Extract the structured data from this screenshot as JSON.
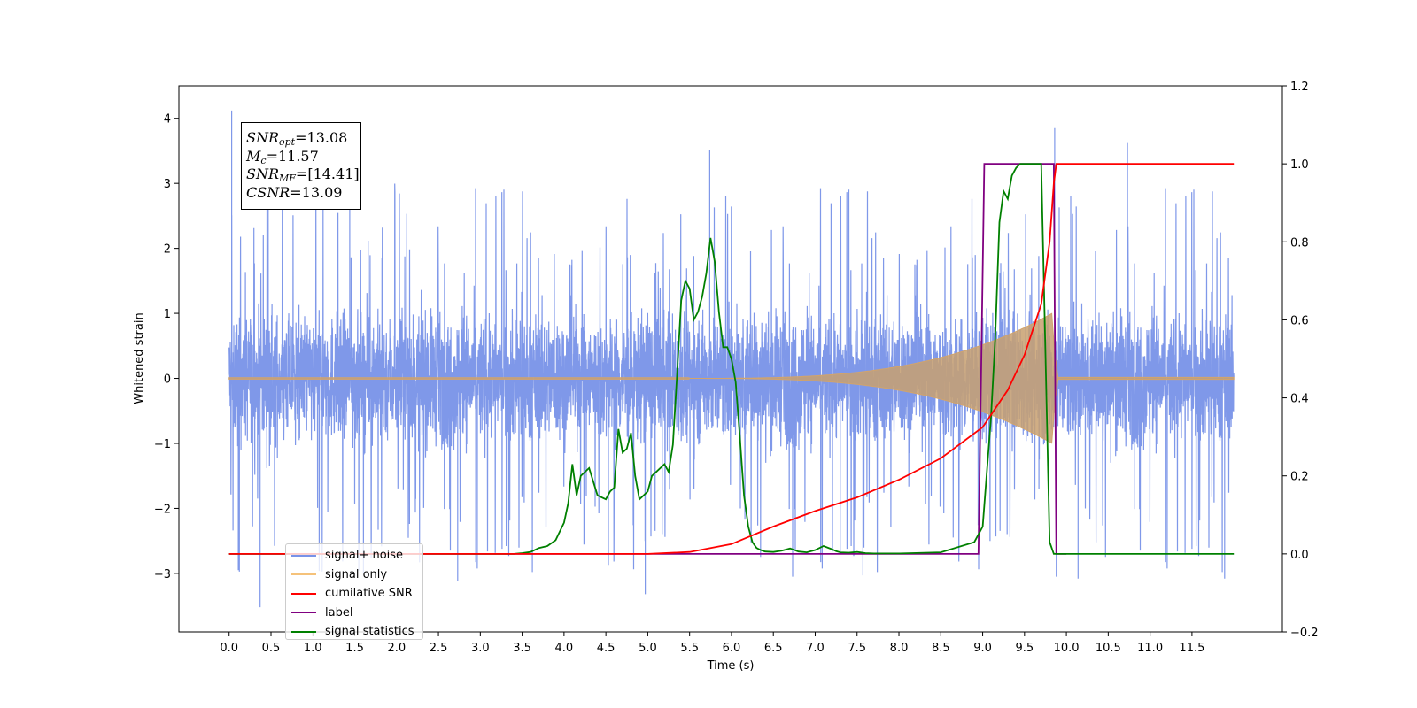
{
  "chart_data": {
    "type": "line",
    "title": "",
    "xlabel": "Time (s)",
    "ylabel": "Whitened strain",
    "xlim": [
      -0.6,
      12.58
    ],
    "ylim": [
      -3.9,
      4.5
    ],
    "y2lim": [
      -0.2,
      1.2
    ],
    "x_ticks": [
      "0.0",
      "0.5",
      "1.0",
      "1.5",
      "2.0",
      "2.5",
      "3.0",
      "3.5",
      "4.0",
      "4.5",
      "5.0",
      "5.5",
      "6.0",
      "6.5",
      "7.0",
      "7.5",
      "8.0",
      "8.5",
      "9.0",
      "9.5",
      "10.0",
      "10.5",
      "11.0",
      "11.5"
    ],
    "y_ticks": [
      "−3",
      "−2",
      "−1",
      "0",
      "1",
      "2",
      "3",
      "4"
    ],
    "y2_ticks": [
      "−0.2",
      "0.0",
      "0.2",
      "0.4",
      "0.6",
      "0.8",
      "1.0",
      "1.2"
    ],
    "grid": false,
    "legend_position": "lower-left",
    "annotation": {
      "lines": [
        {
          "base": "SNR",
          "sub": "opt",
          "value": "=13.08"
        },
        {
          "base": "M",
          "sub": "c",
          "value": "=11.57"
        },
        {
          "base": "SNR",
          "sub": "MF",
          "value": "=[14.41]"
        },
        {
          "base": "CSNR",
          "sub": "",
          "value": "=13.09"
        }
      ]
    },
    "series": [
      {
        "name": "signal+ noise",
        "axis": "left",
        "color": "#7892e8",
        "x_range": [
          0.0,
          12.0
        ],
        "typical_range": [
          -1.4,
          1.4
        ],
        "extremes": [
          {
            "x": 0.03,
            "y": 4.12
          },
          {
            "x": 0.37,
            "y": -3.52
          },
          {
            "x": 0.11,
            "y": -2.95
          },
          {
            "x": 1.44,
            "y": 3.32
          },
          {
            "x": 2.73,
            "y": -3.12
          },
          {
            "x": 4.53,
            "y": -2.87
          },
          {
            "x": 4.97,
            "y": -3.32
          },
          {
            "x": 5.74,
            "y": 3.52
          },
          {
            "x": 6.73,
            "y": -3.05
          },
          {
            "x": 7.57,
            "y": -3.03
          },
          {
            "x": 9.86,
            "y": 3.85
          },
          {
            "x": 9.88,
            "y": -3.05
          },
          {
            "x": 10.14,
            "y": -3.08
          },
          {
            "x": 10.73,
            "y": 3.62
          },
          {
            "x": 11.89,
            "y": -3.08
          }
        ]
      },
      {
        "name": "signal only",
        "axis": "left",
        "color": "#e8b070",
        "chirp": {
          "start": 5.5,
          "merger": 9.83,
          "amplitude_at_merger": 1.0,
          "end": 12.0
        }
      },
      {
        "name": "cumilative SNR",
        "axis": "right",
        "color": "#ff0000",
        "x": [
          0.0,
          5.0,
          5.5,
          6.0,
          6.5,
          7.0,
          7.5,
          8.0,
          8.5,
          9.0,
          9.3,
          9.5,
          9.7,
          9.8,
          9.85,
          9.88,
          12.0
        ],
        "values": [
          0.0,
          0.0,
          0.005,
          0.025,
          0.07,
          0.11,
          0.145,
          0.19,
          0.245,
          0.325,
          0.42,
          0.51,
          0.64,
          0.8,
          0.95,
          1.0,
          1.0
        ]
      },
      {
        "name": "label",
        "axis": "right",
        "color": "#800080",
        "x": [
          0.0,
          8.95,
          9.02,
          9.85,
          9.88,
          10.0
        ],
        "values": [
          0.0,
          0.0,
          1.0,
          1.0,
          0.0,
          0.0
        ]
      },
      {
        "name": "signal statistics",
        "axis": "right",
        "color": "#008000",
        "x": [
          0.0,
          3.4,
          3.5,
          3.6,
          3.7,
          3.8,
          3.9,
          4.0,
          4.05,
          4.1,
          4.15,
          4.2,
          4.3,
          4.4,
          4.5,
          4.55,
          4.6,
          4.65,
          4.7,
          4.75,
          4.8,
          4.85,
          4.9,
          4.95,
          5.0,
          5.05,
          5.1,
          5.2,
          5.25,
          5.3,
          5.35,
          5.4,
          5.45,
          5.5,
          5.55,
          5.6,
          5.65,
          5.7,
          5.75,
          5.8,
          5.85,
          5.9,
          5.95,
          6.0,
          6.05,
          6.1,
          6.15,
          6.2,
          6.25,
          6.3,
          6.35,
          6.4,
          6.5,
          6.6,
          6.7,
          6.8,
          6.9,
          7.0,
          7.1,
          7.2,
          7.25,
          7.3,
          7.4,
          7.5,
          7.6,
          7.7,
          8.0,
          8.5,
          8.9,
          9.0,
          9.1,
          9.15,
          9.2,
          9.25,
          9.3,
          9.35,
          9.4,
          9.45,
          9.5,
          9.6,
          9.7,
          9.8,
          9.85,
          9.9,
          12.0
        ],
        "values": [
          0.0,
          0.0,
          0.002,
          0.005,
          0.015,
          0.02,
          0.035,
          0.08,
          0.13,
          0.23,
          0.15,
          0.2,
          0.22,
          0.15,
          0.14,
          0.16,
          0.17,
          0.32,
          0.26,
          0.27,
          0.31,
          0.2,
          0.14,
          0.15,
          0.16,
          0.2,
          0.21,
          0.23,
          0.21,
          0.28,
          0.46,
          0.65,
          0.7,
          0.68,
          0.6,
          0.62,
          0.66,
          0.72,
          0.81,
          0.75,
          0.62,
          0.53,
          0.53,
          0.5,
          0.44,
          0.3,
          0.15,
          0.07,
          0.03,
          0.015,
          0.01,
          0.006,
          0.005,
          0.008,
          0.014,
          0.006,
          0.004,
          0.01,
          0.02,
          0.012,
          0.007,
          0.004,
          0.003,
          0.005,
          0.002,
          0.001,
          0.001,
          0.004,
          0.03,
          0.07,
          0.35,
          0.55,
          0.85,
          0.93,
          0.91,
          0.97,
          0.99,
          1.0,
          1.0,
          1.0,
          1.0,
          0.03,
          0.0,
          0.0,
          0.0
        ]
      }
    ]
  }
}
